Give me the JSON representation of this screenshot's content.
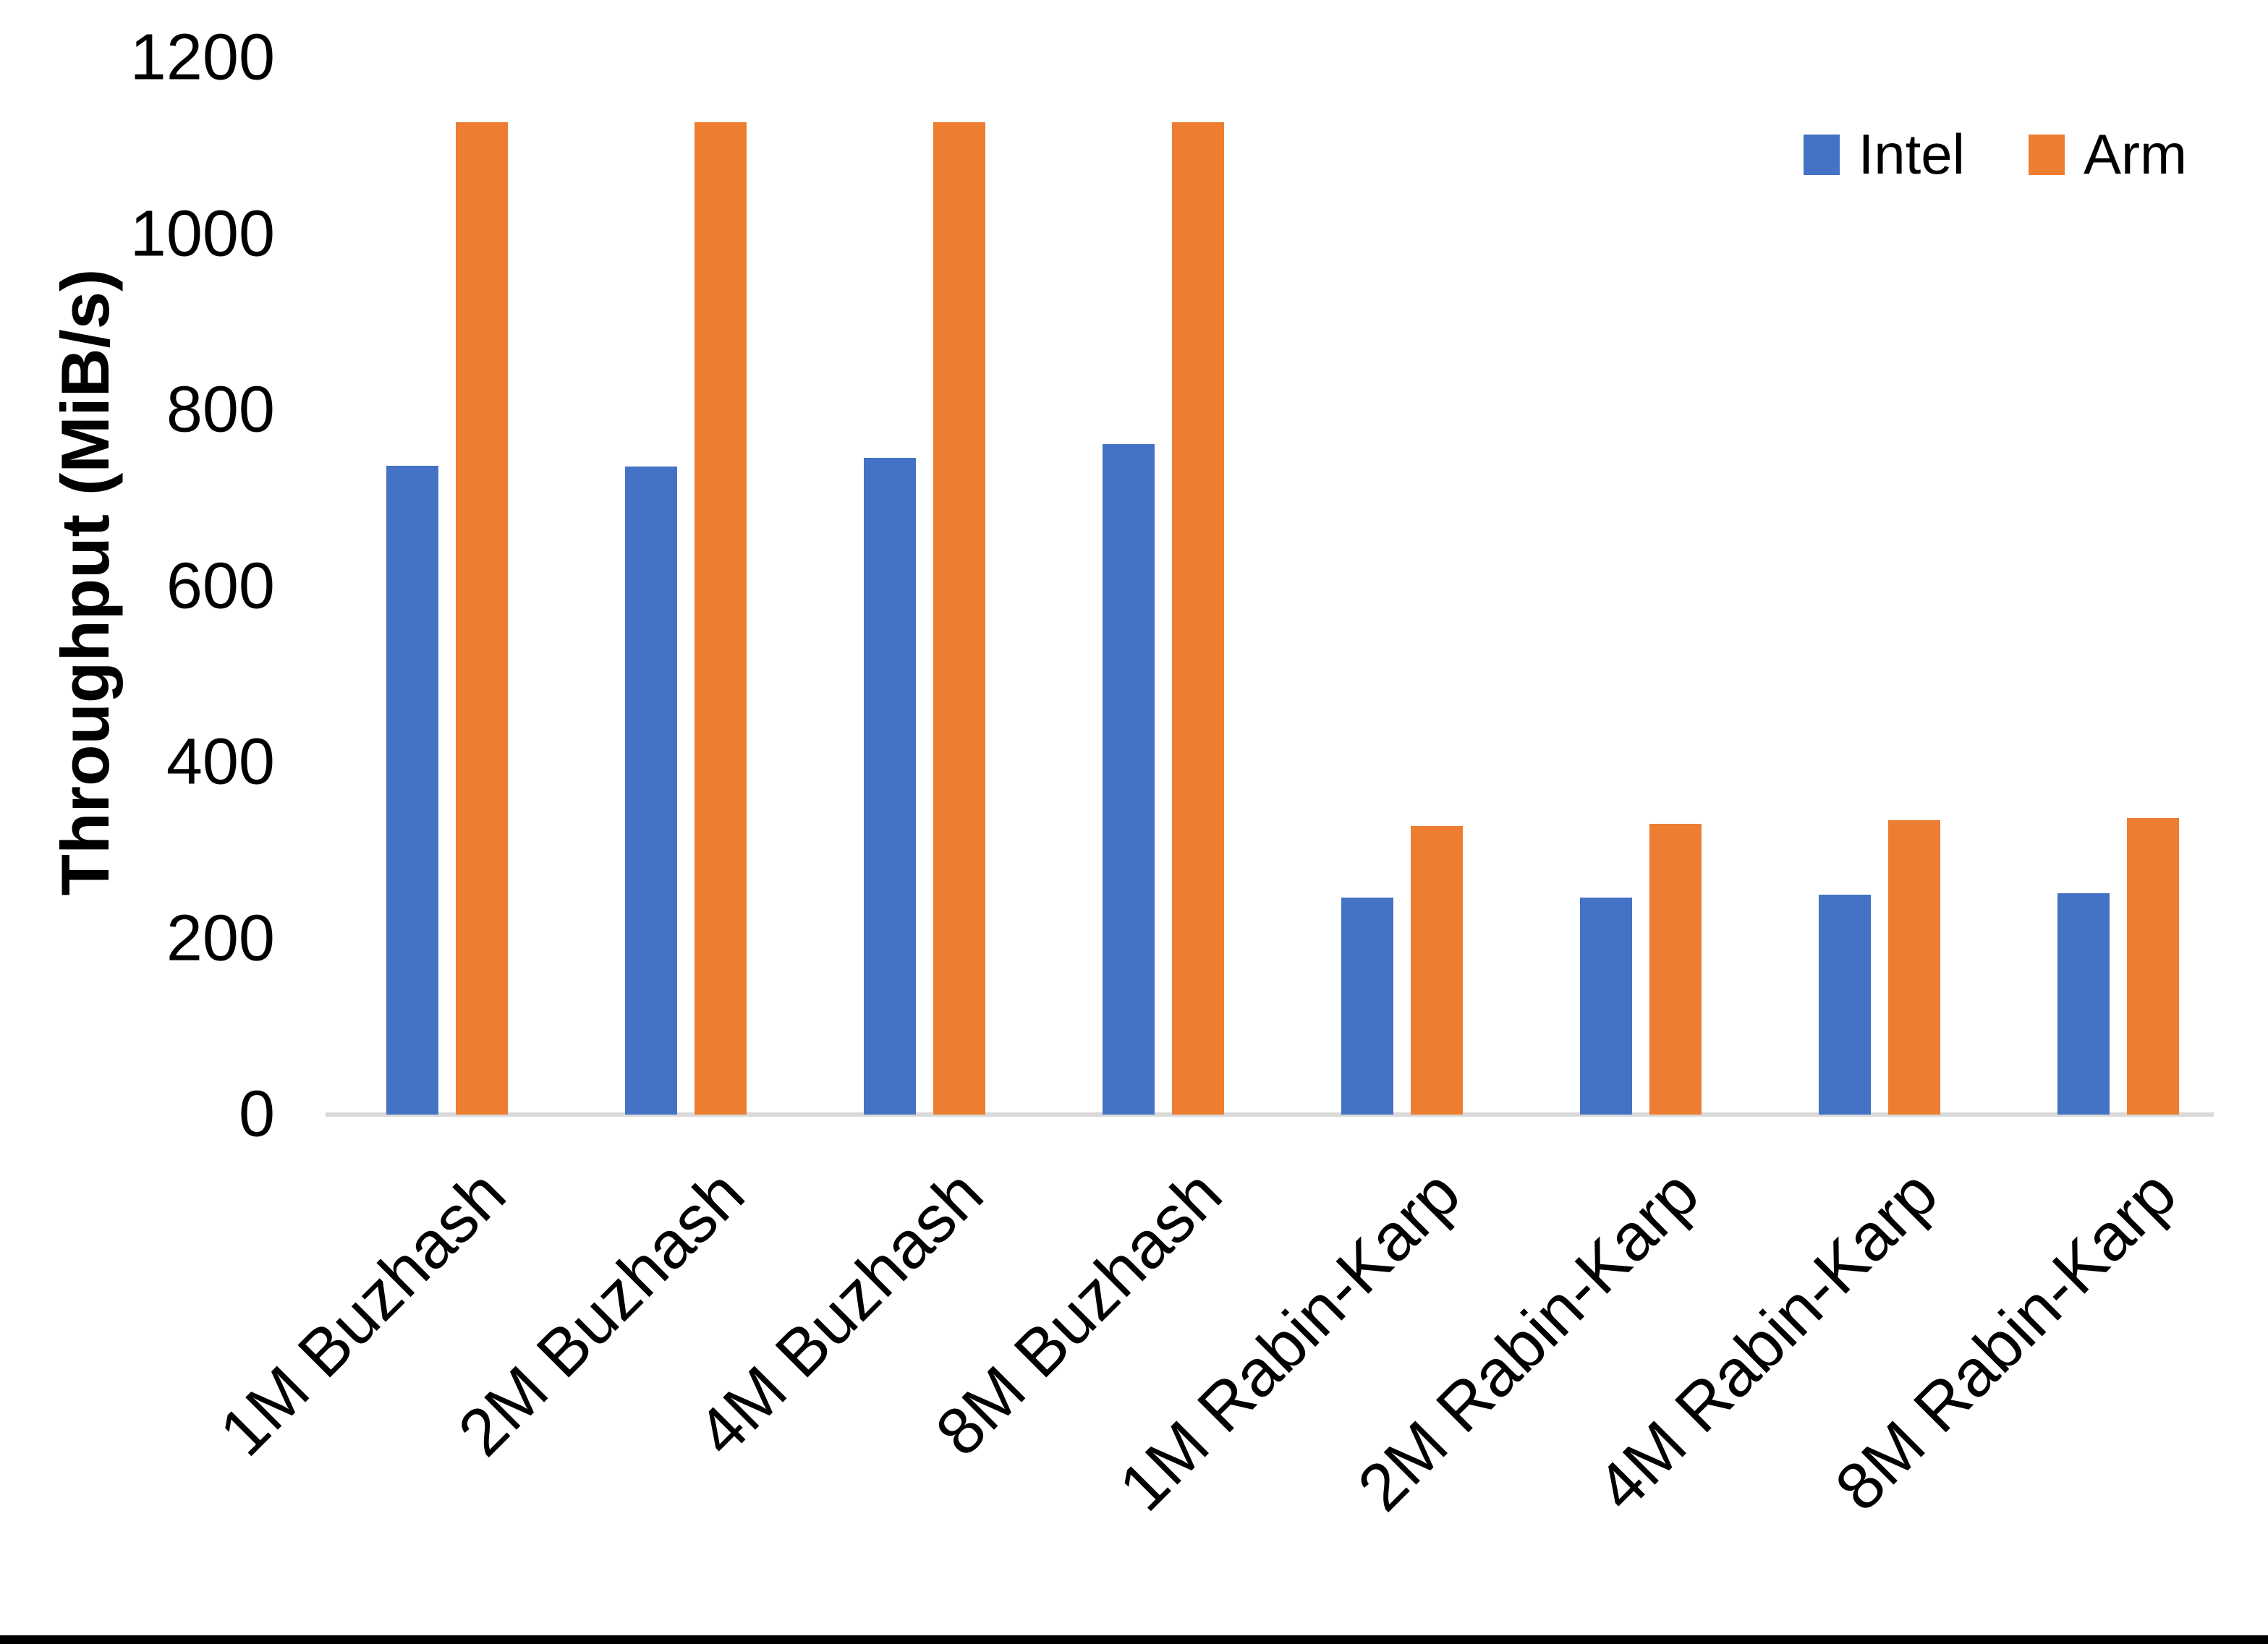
{
  "chart_data": {
    "type": "bar",
    "categories": [
      "1M Buzhash",
      "2M Buzhash",
      "4M Buzhash",
      "8M Buzhash",
      "1M Rabin-Karp",
      "2M Rabin-Karp",
      "4M Rabin-Karp",
      "8M Rabin-Karp"
    ],
    "series": [
      {
        "name": "Intel",
        "color": "#4472C4",
        "values": [
          737,
          736,
          746,
          761,
          246,
          246,
          250,
          251
        ]
      },
      {
        "name": "Arm",
        "color": "#ED7D31",
        "values": [
          1127,
          1127,
          1127,
          1127,
          328,
          330,
          334,
          337
        ]
      }
    ],
    "title": "",
    "xlabel": "",
    "ylabel": "Throughput (MiB/s)",
    "ylim": [
      0,
      1200
    ],
    "ytick_step": 200,
    "yticks": [
      "0",
      "200",
      "400",
      "600",
      "800",
      "1000",
      "1200"
    ],
    "grid": false,
    "legend_position": "top-right",
    "axis_line_color": "#D9D9D9",
    "text_color": "#000000",
    "background": "#FFFFFF"
  }
}
